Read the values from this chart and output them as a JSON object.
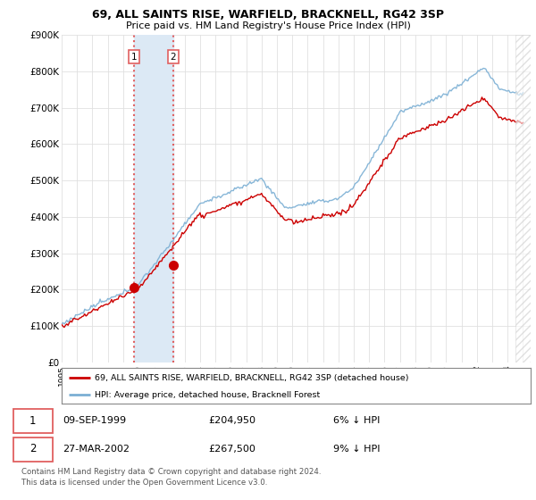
{
  "title": "69, ALL SAINTS RISE, WARFIELD, BRACKNELL, RG42 3SP",
  "subtitle": "Price paid vs. HM Land Registry's House Price Index (HPI)",
  "ylim": [
    0,
    900000
  ],
  "yticks": [
    0,
    100000,
    200000,
    300000,
    400000,
    500000,
    600000,
    700000,
    800000,
    900000
  ],
  "ytick_labels": [
    "£0",
    "£100K",
    "£200K",
    "£300K",
    "£400K",
    "£500K",
    "£600K",
    "£700K",
    "£800K",
    "£900K"
  ],
  "hpi_color": "#7bafd4",
  "property_color": "#cc0000",
  "sale1_year": 1999.69,
  "sale1_price": 204950,
  "sale1_label": "1",
  "sale1_date": "09-SEP-1999",
  "sale1_price_str": "£204,950",
  "sale1_hpi_str": "6% ↓ HPI",
  "sale2_year": 2002.24,
  "sale2_price": 267500,
  "sale2_label": "2",
  "sale2_date": "27-MAR-2002",
  "sale2_price_str": "£267,500",
  "sale2_hpi_str": "9% ↓ HPI",
  "legend_line1": "69, ALL SAINTS RISE, WARFIELD, BRACKNELL, RG42 3SP (detached house)",
  "legend_line2": "HPI: Average price, detached house, Bracknell Forest",
  "footer": "Contains HM Land Registry data © Crown copyright and database right 2024.\nThis data is licensed under the Open Government Licence v3.0.",
  "background_color": "#ffffff",
  "grid_color": "#e0e0e0",
  "highlight_fill": "#dce9f5",
  "dashed_color": "#e06060"
}
